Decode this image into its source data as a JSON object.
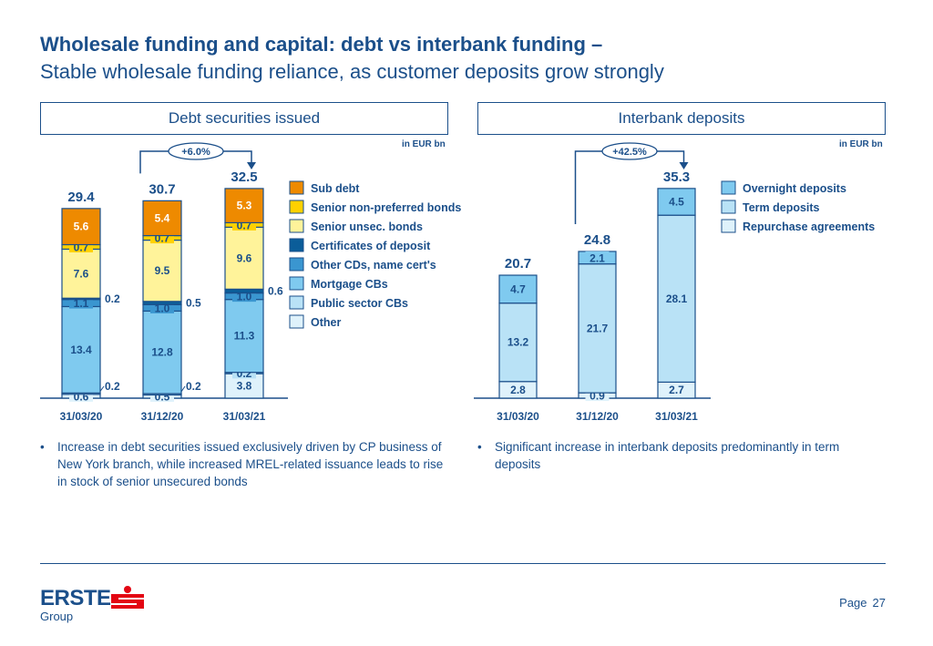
{
  "header": {
    "title": "Wholesale funding and capital: debt vs interbank funding –",
    "subtitle": "Stable wholesale funding reliance, as customer deposits grow strongly"
  },
  "footer": {
    "brand": "ERSTE",
    "brand_sub": "Group",
    "page_label": "Page",
    "page_number": "27"
  },
  "bullets": {
    "left": "Increase in debt securities issued exclusively driven by CP business of New York branch, while increased MREL-related issuance leads to rise in stock of senior unsecured bonds",
    "right": "Significant increase in interbank deposits predominantly in term deposits"
  },
  "chart_data": [
    {
      "type": "bar",
      "stacked": true,
      "title": "Debt securities issued",
      "unit": "in EUR bn",
      "categories": [
        "31/03/20",
        "31/12/20",
        "31/03/21"
      ],
      "totals": [
        "29.4",
        "30.7",
        "32.5"
      ],
      "change": {
        "label": "+6.0%",
        "from": "31/12/20",
        "to": "31/03/21"
      },
      "legend_position": "right",
      "series": [
        {
          "name": "Other",
          "color": "#dff2fb",
          "values": [
            0.6,
            0.5,
            3.8
          ]
        },
        {
          "name": "Public sector CBs",
          "color": "#b9e2f6",
          "values": [
            0.2,
            0.2,
            0.2
          ]
        },
        {
          "name": "Mortgage CBs",
          "color": "#7fcaef",
          "values": [
            13.4,
            12.8,
            11.3
          ]
        },
        {
          "name": "Other CDs, name cert's",
          "color": "#3a96d0",
          "values": [
            1.1,
            1.0,
            1.0
          ]
        },
        {
          "name": "Certificates of deposit",
          "color": "#0b5d99",
          "values": [
            0.2,
            0.5,
            0.6
          ]
        },
        {
          "name": "Senior unsec. bonds",
          "color": "#fff39a",
          "values": [
            7.6,
            9.5,
            9.6
          ]
        },
        {
          "name": "Senior non-preferred bonds",
          "color": "#ffd100",
          "values": [
            0.7,
            0.7,
            0.7
          ]
        },
        {
          "name": "Sub debt",
          "color": "#ee8a00",
          "values": [
            5.6,
            5.4,
            5.3
          ]
        }
      ],
      "legend_order": [
        "Sub debt",
        "Senior non-preferred bonds",
        "Senior unsec. bonds",
        "Certificates of deposit",
        "Other CDs, name cert's",
        "Mortgage CBs",
        "Public sector CBs",
        "Other"
      ]
    },
    {
      "type": "bar",
      "stacked": true,
      "title": "Interbank deposits",
      "unit": "in EUR bn",
      "categories": [
        "31/03/20",
        "31/12/20",
        "31/03/21"
      ],
      "totals": [
        "20.7",
        "24.8",
        "35.3"
      ],
      "change": {
        "label": "+42.5%",
        "from": "31/12/20",
        "to": "31/03/21"
      },
      "legend_position": "right",
      "series": [
        {
          "name": "Repurchase agreements",
          "color": "#dff2fb",
          "values": [
            2.8,
            0.9,
            2.7
          ]
        },
        {
          "name": "Term deposits",
          "color": "#b9e2f6",
          "values": [
            13.2,
            21.7,
            28.1
          ]
        },
        {
          "name": "Overnight deposits",
          "color": "#7fcaef",
          "values": [
            4.7,
            2.1,
            4.5
          ]
        }
      ],
      "legend_order": [
        "Overnight deposits",
        "Term deposits",
        "Repurchase agreements"
      ]
    }
  ]
}
